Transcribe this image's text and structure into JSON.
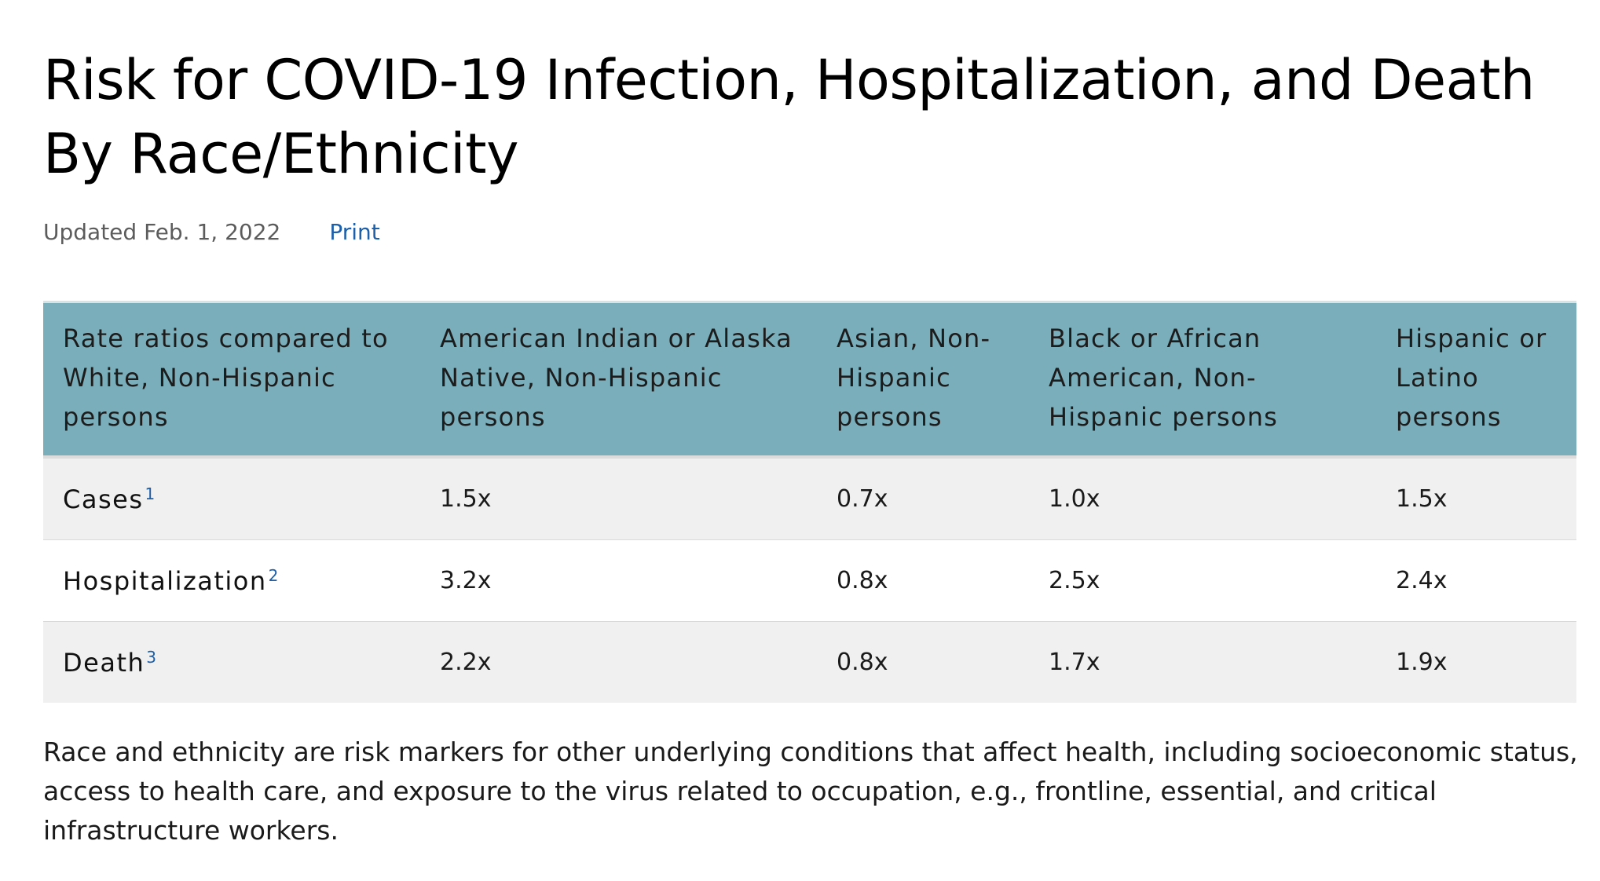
{
  "page": {
    "title": "Risk for COVID-19 Infection, Hospitalization, and Death By Race/Ethnicity",
    "updated": "Updated Feb. 1, 2022",
    "print_label": "Print"
  },
  "table": {
    "headers": [
      "Rate ratios compared to White, Non-Hispanic persons",
      "American Indian or Alaska Native, Non-Hispanic persons",
      "Asian, Non-Hispanic persons",
      "Black or African American, Non-Hispanic persons",
      "Hispanic or Latino persons"
    ],
    "rows": [
      {
        "label": "Cases",
        "footnote": "1",
        "values": [
          "1.5x",
          "0.7x",
          "1.0x",
          "1.5x"
        ]
      },
      {
        "label": "Hospitalization",
        "footnote": "2",
        "values": [
          "3.2x",
          "0.8x",
          "2.5x",
          "2.4x"
        ]
      },
      {
        "label": "Death",
        "footnote": "3",
        "values": [
          "2.2x",
          "0.8x",
          "1.7x",
          "1.9x"
        ]
      }
    ]
  },
  "note": "Race and ethnicity are risk markers for other underlying conditions that affect health, including socioeconomic status, access to health care, and exposure to the virus related to occupation, e.g., frontline, essential, and critical infrastructure workers.",
  "colors": {
    "header_bg": "#7aaebb",
    "shaded_row_bg": "#f0f0f0",
    "link": "#1d5fa8"
  }
}
